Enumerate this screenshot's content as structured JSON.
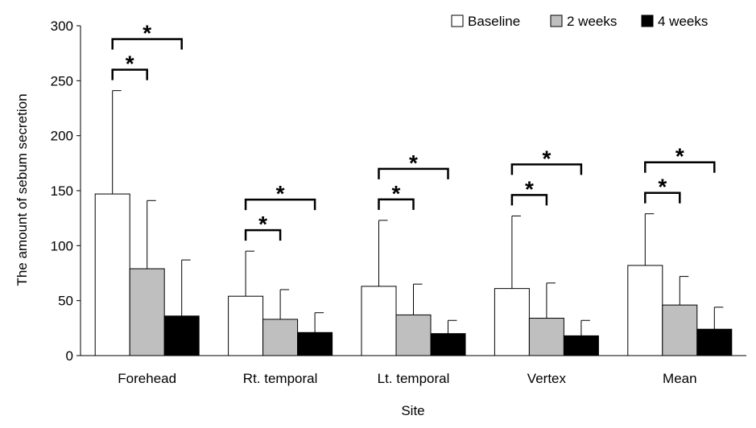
{
  "chart_data": {
    "type": "bar",
    "xlabel": "Site",
    "ylabel": "The amount of sebum secretion",
    "ylim": [
      0,
      300
    ],
    "yticks": [
      0,
      50,
      100,
      150,
      200,
      250,
      300
    ],
    "categories": [
      "Forehead",
      "Rt. temporal",
      "Lt. temporal",
      "Vertex",
      "Mean"
    ],
    "series": [
      {
        "name": "Baseline",
        "color": "#ffffff",
        "values": [
          147,
          54,
          63,
          61,
          82
        ],
        "errors": [
          94,
          41,
          60,
          66,
          47
        ]
      },
      {
        "name": "2 weeks",
        "color": "#bfbfbf",
        "values": [
          79,
          33,
          37,
          34,
          46
        ],
        "errors": [
          62,
          27,
          28,
          32,
          26
        ]
      },
      {
        "name": "4 weeks",
        "color": "#000000",
        "values": [
          36,
          21,
          20,
          18,
          24
        ],
        "errors": [
          51,
          18,
          12,
          14,
          20
        ]
      }
    ],
    "legend_position": "top-right",
    "annotations": [
      {
        "category": "Forehead",
        "from": "Baseline",
        "to": "2 weeks",
        "label": "*"
      },
      {
        "category": "Forehead",
        "from": "Baseline",
        "to": "4 weeks",
        "label": "*"
      },
      {
        "category": "Rt. temporal",
        "from": "Baseline",
        "to": "2 weeks",
        "label": "*"
      },
      {
        "category": "Rt. temporal",
        "from": "Baseline",
        "to": "4 weeks",
        "label": "*"
      },
      {
        "category": "Lt. temporal",
        "from": "Baseline",
        "to": "2 weeks",
        "label": "*"
      },
      {
        "category": "Lt. temporal",
        "from": "Baseline",
        "to": "4 weeks",
        "label": "*"
      },
      {
        "category": "Vertex",
        "from": "Baseline",
        "to": "2 weeks",
        "label": "*"
      },
      {
        "category": "Vertex",
        "from": "Baseline",
        "to": "4 weeks",
        "label": "*"
      },
      {
        "category": "Mean",
        "from": "Baseline",
        "to": "2 weeks",
        "label": "*"
      },
      {
        "category": "Mean",
        "from": "Baseline",
        "to": "4 weeks",
        "label": "*"
      }
    ]
  }
}
